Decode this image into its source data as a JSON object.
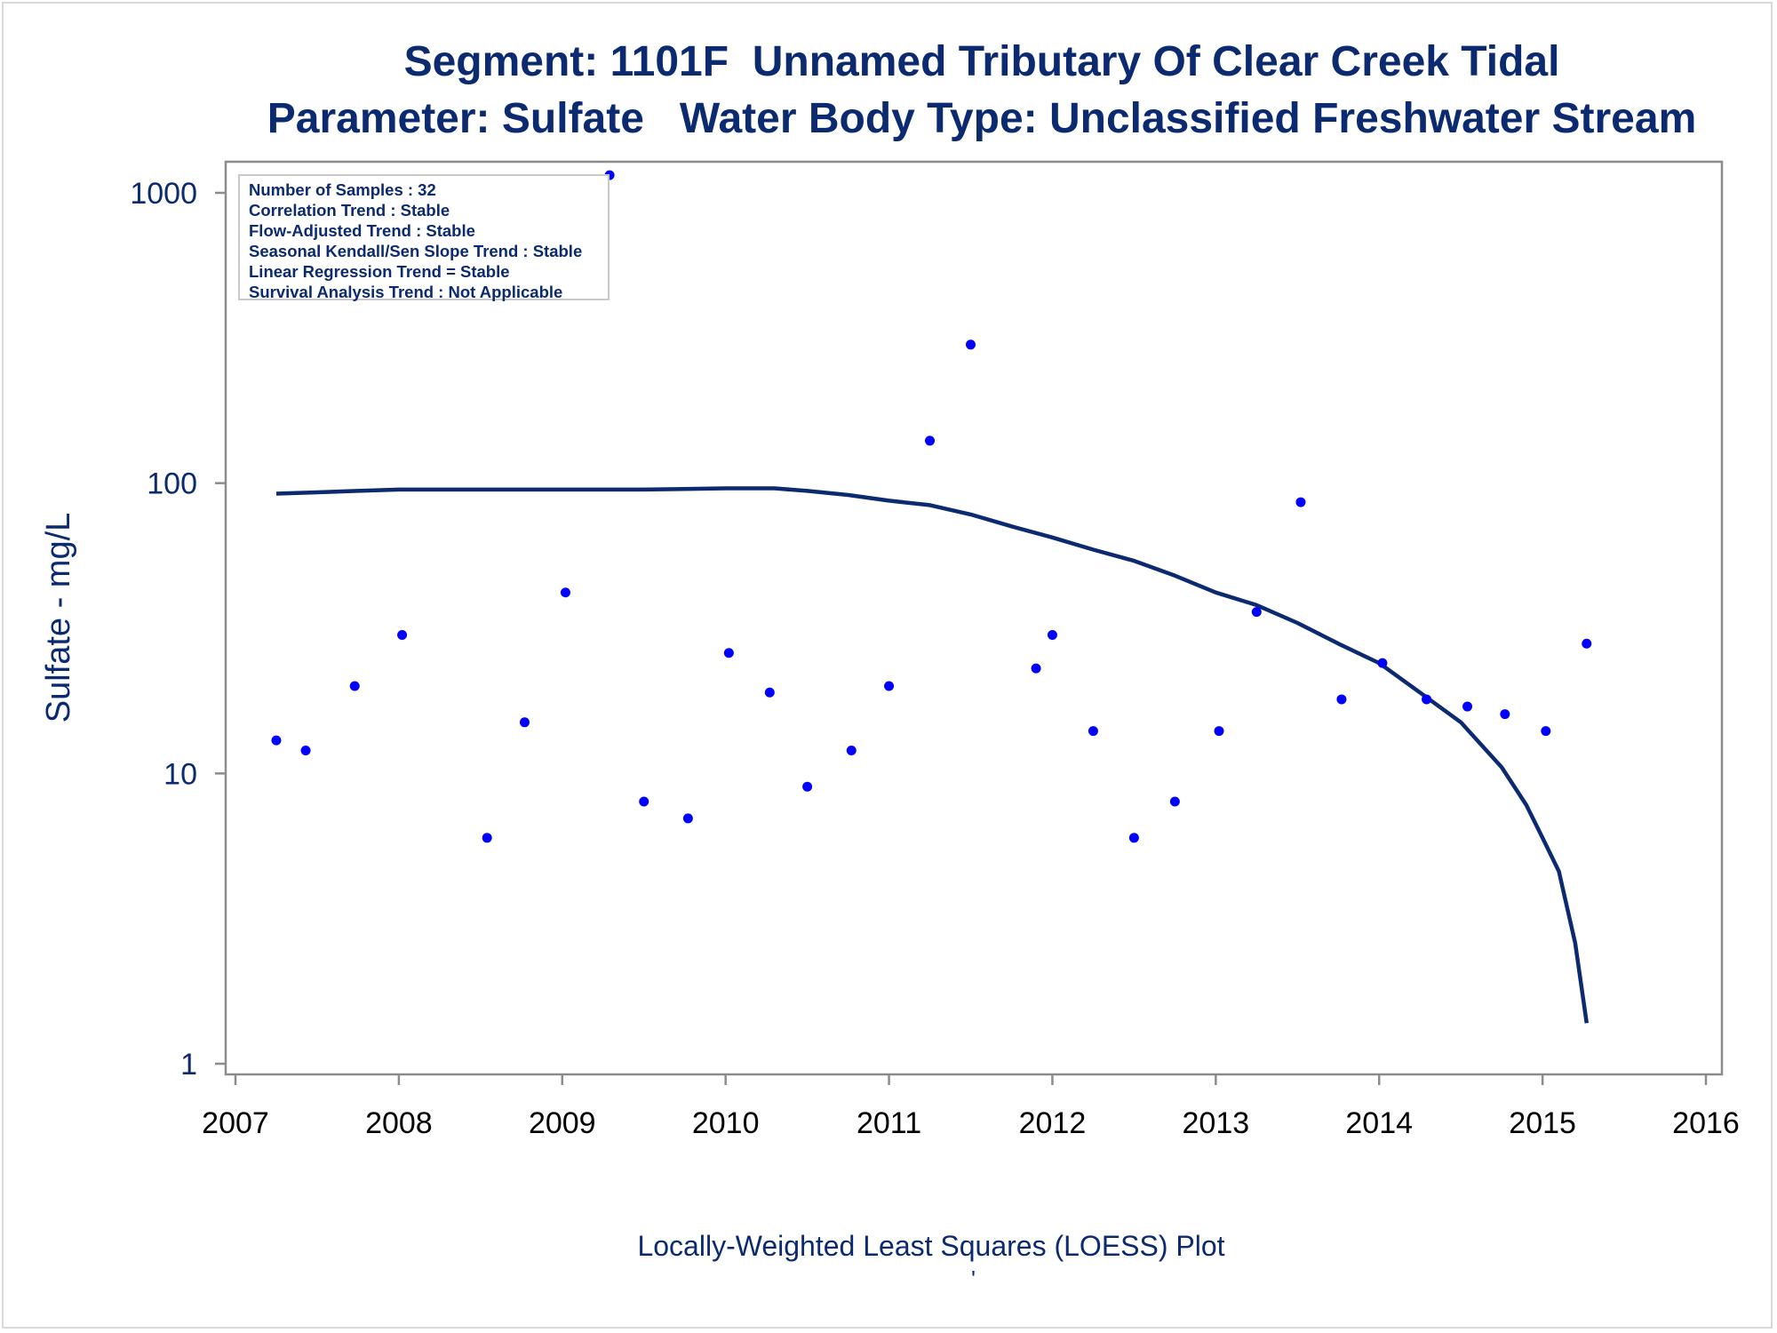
{
  "chart_data": {
    "type": "scatter",
    "title": "Segment: 1101F  Unnamed Tributary Of Clear Creek Tidal",
    "subtitle": "Parameter: Sulfate   Water Body Type: Unclassified Freshwater Stream",
    "ylabel": "Sulfate - mg/L",
    "footnote": "Locally-Weighted Least Squares (LOESS) Plot",
    "footmark": "'",
    "y_scale": "log",
    "xlim": [
      2007,
      2016
    ],
    "ylim": [
      1,
      1000
    ],
    "x_ticks": [
      "2007",
      "2008",
      "2009",
      "2010",
      "2011",
      "2012",
      "2013",
      "2014",
      "2015",
      "2016"
    ],
    "y_ticks": [
      "1",
      "10",
      "100",
      "1000"
    ],
    "grid": false,
    "legend_position": "top-left",
    "info_box": [
      "Number of Samples : 32",
      "Correlation Trend : Stable",
      "Flow-Adjusted Trend : Stable",
      "Seasonal Kendall/Sen Slope Trend : Stable",
      "Linear Regression Trend = Stable",
      "Survival Analysis Trend : Not Applicable"
    ],
    "series": [
      {
        "kind": "points",
        "color": "#0000ff",
        "points": [
          [
            2007.25,
            13
          ],
          [
            2007.43,
            12
          ],
          [
            2007.73,
            20
          ],
          [
            2008.02,
            30
          ],
          [
            2008.54,
            6
          ],
          [
            2008.77,
            15
          ],
          [
            2009.02,
            42
          ],
          [
            2009.29,
            1150
          ],
          [
            2009.5,
            8
          ],
          [
            2009.77,
            7
          ],
          [
            2010.02,
            26
          ],
          [
            2010.27,
            19
          ],
          [
            2010.5,
            9
          ],
          [
            2010.77,
            12
          ],
          [
            2011.0,
            20
          ],
          [
            2011.25,
            140
          ],
          [
            2011.5,
            300
          ],
          [
            2011.9,
            23
          ],
          [
            2012.0,
            30
          ],
          [
            2012.25,
            14
          ],
          [
            2012.5,
            6
          ],
          [
            2012.75,
            8
          ],
          [
            2013.02,
            14
          ],
          [
            2013.25,
            36
          ],
          [
            2013.52,
            86
          ],
          [
            2013.77,
            18
          ],
          [
            2014.02,
            24
          ],
          [
            2014.29,
            18
          ],
          [
            2014.54,
            17
          ],
          [
            2014.77,
            16
          ],
          [
            2015.02,
            14
          ],
          [
            2015.27,
            28
          ]
        ]
      },
      {
        "kind": "loess-line",
        "color": "#0b2a6f",
        "points": [
          [
            2007.25,
            92
          ],
          [
            2007.5,
            93
          ],
          [
            2007.75,
            94
          ],
          [
            2008.0,
            95
          ],
          [
            2008.5,
            95
          ],
          [
            2009.0,
            95
          ],
          [
            2009.5,
            95
          ],
          [
            2010.0,
            96
          ],
          [
            2010.3,
            96
          ],
          [
            2010.5,
            94
          ],
          [
            2010.75,
            91
          ],
          [
            2011.0,
            87
          ],
          [
            2011.25,
            84
          ],
          [
            2011.5,
            78
          ],
          [
            2011.75,
            71
          ],
          [
            2012.0,
            65
          ],
          [
            2012.25,
            59
          ],
          [
            2012.5,
            54
          ],
          [
            2012.75,
            48
          ],
          [
            2013.0,
            42
          ],
          [
            2013.25,
            38
          ],
          [
            2013.5,
            33
          ],
          [
            2013.75,
            28
          ],
          [
            2014.0,
            24
          ],
          [
            2014.25,
            19
          ],
          [
            2014.5,
            15
          ],
          [
            2014.75,
            10.5
          ],
          [
            2014.9,
            7.8
          ],
          [
            2015.0,
            6.0
          ],
          [
            2015.1,
            4.6
          ],
          [
            2015.2,
            2.6
          ],
          [
            2015.27,
            1.38
          ]
        ]
      }
    ]
  }
}
